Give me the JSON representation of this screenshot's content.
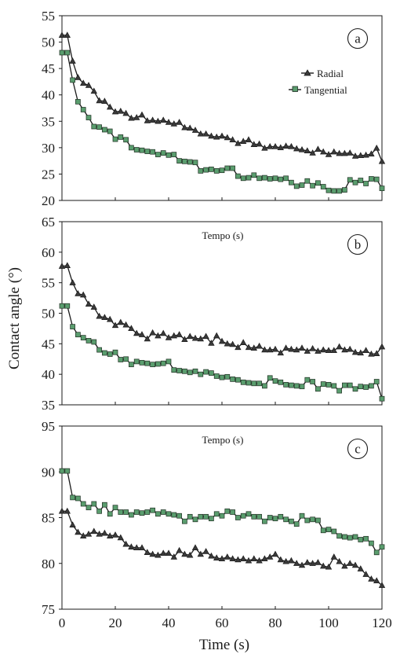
{
  "chart_data": [
    {
      "type": "line",
      "panel_label": "a",
      "inner_note": "",
      "ylim": [
        20,
        55
      ],
      "yticks": [
        20,
        25,
        30,
        35,
        40,
        45,
        50,
        55
      ],
      "xlim": [
        0,
        120
      ],
      "xticks": [
        0,
        20,
        40,
        60,
        80,
        100,
        120
      ],
      "legend": "right-upper",
      "series": [
        {
          "name": "Radial",
          "marker": "triangle",
          "x": [
            0,
            2,
            4,
            6,
            8,
            10,
            12,
            14,
            16,
            18,
            20,
            22,
            24,
            26,
            28,
            30,
            32,
            34,
            36,
            38,
            40,
            42,
            44,
            46,
            48,
            50,
            52,
            54,
            56,
            58,
            60,
            62,
            64,
            66,
            68,
            70,
            72,
            74,
            76,
            78,
            80,
            82,
            84,
            86,
            88,
            90,
            92,
            94,
            96,
            98,
            100,
            102,
            104,
            106,
            108,
            110,
            112,
            114,
            116,
            118,
            120
          ],
          "values": [
            51.3,
            51.3,
            46.4,
            43.3,
            42.2,
            41.8,
            40.7,
            38.9,
            38.8,
            37.7,
            36.8,
            36.9,
            36.5,
            35.6,
            35.7,
            36.2,
            35.1,
            35.2,
            35.0,
            35.2,
            34.8,
            34.5,
            34.8,
            33.8,
            33.7,
            33.3,
            32.6,
            32.6,
            32.2,
            32.0,
            32.2,
            31.9,
            31.5,
            30.8,
            31.2,
            31.5,
            30.6,
            30.7,
            29.9,
            30.2,
            30.2,
            30.0,
            30.3,
            30.2,
            29.8,
            29.6,
            29.4,
            29.0,
            29.7,
            29.2,
            28.7,
            29.2,
            28.9,
            28.9,
            29.0,
            28.4,
            28.5,
            28.6,
            28.8,
            29.9,
            27.4
          ]
        },
        {
          "name": "Tangential",
          "marker": "square",
          "x": [
            0,
            2,
            4,
            6,
            8,
            10,
            12,
            14,
            16,
            18,
            20,
            22,
            24,
            26,
            28,
            30,
            32,
            34,
            36,
            38,
            40,
            42,
            44,
            46,
            48,
            50,
            52,
            54,
            56,
            58,
            60,
            62,
            64,
            66,
            68,
            70,
            72,
            74,
            76,
            78,
            80,
            82,
            84,
            86,
            88,
            90,
            92,
            94,
            96,
            98,
            100,
            102,
            104,
            106,
            108,
            110,
            112,
            114,
            116,
            118,
            120
          ],
          "values": [
            48.0,
            48.0,
            42.8,
            38.7,
            37.2,
            35.7,
            34.0,
            33.9,
            33.4,
            33.1,
            31.6,
            32.0,
            31.5,
            30.0,
            29.6,
            29.5,
            29.3,
            29.2,
            28.7,
            29.0,
            28.6,
            28.7,
            27.5,
            27.4,
            27.3,
            27.2,
            25.6,
            25.8,
            25.9,
            25.6,
            25.7,
            26.1,
            26.1,
            24.6,
            24.2,
            24.3,
            24.8,
            24.2,
            24.3,
            24.1,
            24.2,
            24.0,
            24.2,
            23.4,
            22.7,
            22.9,
            23.7,
            22.8,
            23.3,
            22.6,
            21.9,
            21.8,
            21.8,
            22.0,
            23.9,
            23.4,
            23.8,
            23.2,
            24.1,
            24.0,
            22.3
          ]
        }
      ]
    },
    {
      "type": "line",
      "panel_label": "b",
      "inner_note": "Tempo (s)",
      "ylim": [
        35,
        65
      ],
      "yticks": [
        35,
        40,
        45,
        50,
        55,
        60,
        65
      ],
      "xlim": [
        0,
        120
      ],
      "xticks": [
        0,
        20,
        40,
        60,
        80,
        100,
        120
      ],
      "series": [
        {
          "name": "Radial",
          "marker": "triangle",
          "x": [
            0,
            2,
            4,
            6,
            8,
            10,
            12,
            14,
            16,
            18,
            20,
            22,
            24,
            26,
            28,
            30,
            32,
            34,
            36,
            38,
            40,
            42,
            44,
            46,
            48,
            50,
            52,
            54,
            56,
            58,
            60,
            62,
            64,
            66,
            68,
            70,
            72,
            74,
            76,
            78,
            80,
            82,
            84,
            86,
            88,
            90,
            92,
            94,
            96,
            98,
            100,
            102,
            104,
            106,
            108,
            110,
            112,
            114,
            116,
            118,
            120
          ],
          "values": [
            57.7,
            57.8,
            55.0,
            53.2,
            53.0,
            51.5,
            51.0,
            49.5,
            49.3,
            49.0,
            48.0,
            48.5,
            48.1,
            47.5,
            46.7,
            46.5,
            45.8,
            46.8,
            46.3,
            46.7,
            46.0,
            46.3,
            46.5,
            45.7,
            46.2,
            45.9,
            45.8,
            46.2,
            45.1,
            46.3,
            45.4,
            45.0,
            44.9,
            44.4,
            45.2,
            44.4,
            44.3,
            44.6,
            44.0,
            44.0,
            44.1,
            43.5,
            44.3,
            44.1,
            44.0,
            44.3,
            43.8,
            44.2,
            43.8,
            44.0,
            43.9,
            43.9,
            44.5,
            44.0,
            44.1,
            43.6,
            43.5,
            43.9,
            43.3,
            43.4,
            44.5
          ]
        },
        {
          "name": "Tangential",
          "marker": "square",
          "x": [
            0,
            2,
            4,
            6,
            8,
            10,
            12,
            14,
            16,
            18,
            20,
            22,
            24,
            26,
            28,
            30,
            32,
            34,
            36,
            38,
            40,
            42,
            44,
            46,
            48,
            50,
            52,
            54,
            56,
            58,
            60,
            62,
            64,
            66,
            68,
            70,
            72,
            74,
            76,
            78,
            80,
            82,
            84,
            86,
            88,
            90,
            92,
            94,
            96,
            98,
            100,
            102,
            104,
            106,
            108,
            110,
            112,
            114,
            116,
            118,
            120
          ],
          "values": [
            51.2,
            51.2,
            47.8,
            46.5,
            46.0,
            45.5,
            45.3,
            44.0,
            43.5,
            43.3,
            43.6,
            42.4,
            42.5,
            41.6,
            42.1,
            41.9,
            41.8,
            41.6,
            41.7,
            41.8,
            42.1,
            40.7,
            40.6,
            40.5,
            40.3,
            40.5,
            40.0,
            40.4,
            40.2,
            39.7,
            39.5,
            39.6,
            39.2,
            39.1,
            38.7,
            38.6,
            38.5,
            38.5,
            38.1,
            39.4,
            38.9,
            38.7,
            38.3,
            38.2,
            38.1,
            38.0,
            39.1,
            38.8,
            37.6,
            38.4,
            38.3,
            38.1,
            37.3,
            38.2,
            38.2,
            37.6,
            38.0,
            37.9,
            38.1,
            38.8,
            36.0
          ]
        }
      ]
    },
    {
      "type": "line",
      "panel_label": "c",
      "inner_note": "Tempo (s)",
      "ylim": [
        75,
        95
      ],
      "yticks": [
        75,
        80,
        85,
        90,
        95
      ],
      "xlim": [
        0,
        120
      ],
      "xticks": [
        0,
        20,
        40,
        60,
        80,
        100,
        120
      ],
      "xlabel": "Time (s)",
      "series": [
        {
          "name": "Radial",
          "marker": "triangle",
          "x": [
            0,
            2,
            4,
            6,
            8,
            10,
            12,
            14,
            16,
            18,
            20,
            22,
            24,
            26,
            28,
            30,
            32,
            34,
            36,
            38,
            40,
            42,
            44,
            46,
            48,
            50,
            52,
            54,
            56,
            58,
            60,
            62,
            64,
            66,
            68,
            70,
            72,
            74,
            76,
            78,
            80,
            82,
            84,
            86,
            88,
            90,
            92,
            94,
            96,
            98,
            100,
            102,
            104,
            106,
            108,
            110,
            112,
            114,
            116,
            118,
            120
          ],
          "values": [
            85.7,
            85.7,
            84.2,
            83.4,
            83.0,
            83.2,
            83.5,
            83.2,
            83.3,
            83.0,
            83.1,
            82.8,
            82.1,
            81.8,
            81.7,
            81.7,
            81.2,
            81.0,
            80.9,
            81.1,
            81.1,
            80.7,
            81.4,
            81.0,
            80.9,
            81.7,
            81.0,
            81.3,
            80.8,
            80.6,
            80.5,
            80.7,
            80.5,
            80.4,
            80.5,
            80.3,
            80.5,
            80.3,
            80.5,
            80.7,
            81.0,
            80.4,
            80.2,
            80.3,
            80.0,
            79.8,
            80.1,
            80.0,
            80.1,
            79.7,
            79.6,
            80.7,
            80.2,
            79.7,
            80.0,
            79.8,
            79.4,
            78.8,
            78.3,
            78.1,
            77.6
          ]
        },
        {
          "name": "Tangential",
          "marker": "square",
          "x": [
            0,
            2,
            4,
            6,
            8,
            10,
            12,
            14,
            16,
            18,
            20,
            22,
            24,
            26,
            28,
            30,
            32,
            34,
            36,
            38,
            40,
            42,
            44,
            46,
            48,
            50,
            52,
            54,
            56,
            58,
            60,
            62,
            64,
            66,
            68,
            70,
            72,
            74,
            76,
            78,
            80,
            82,
            84,
            86,
            88,
            90,
            92,
            94,
            96,
            98,
            100,
            102,
            104,
            106,
            108,
            110,
            112,
            114,
            116,
            118,
            120
          ],
          "values": [
            90.1,
            90.1,
            87.2,
            87.1,
            86.5,
            86.1,
            86.5,
            85.7,
            86.4,
            85.4,
            86.1,
            85.6,
            85.6,
            85.3,
            85.6,
            85.5,
            85.6,
            85.8,
            85.4,
            85.6,
            85.4,
            85.3,
            85.2,
            84.6,
            85.1,
            84.8,
            85.1,
            85.1,
            84.9,
            85.4,
            85.2,
            85.7,
            85.6,
            85.0,
            85.2,
            85.4,
            85.1,
            85.1,
            84.6,
            85.0,
            84.9,
            85.1,
            84.8,
            84.6,
            84.3,
            85.2,
            84.7,
            84.8,
            84.7,
            83.6,
            83.7,
            83.5,
            83.0,
            82.9,
            82.8,
            82.9,
            82.6,
            82.7,
            82.2,
            81.2,
            81.8
          ]
        }
      ]
    }
  ],
  "ylabel": "Contact angle (°)",
  "xlabel": "Time (s)",
  "legend_radial": "Radial",
  "legend_tangential": "Tangential",
  "colors": {
    "line": "#1a1a1a",
    "triangle_fill": "#3a3a3a",
    "square_fill": "#5a9d6e",
    "square_stroke": "#1f2e22"
  }
}
